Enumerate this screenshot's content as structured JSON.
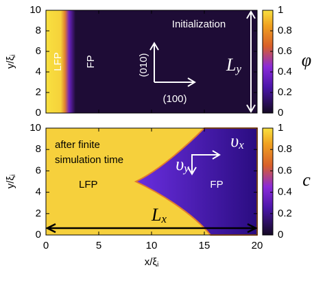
{
  "chart_data": [
    {
      "type": "heatmap",
      "ylabel": "y/ξi",
      "colorbar_label": "φ",
      "xlim": [
        0,
        20
      ],
      "xticks": [
        0,
        5,
        10,
        15,
        20
      ],
      "ylim": [
        0,
        10
      ],
      "yticks": [
        0,
        2,
        4,
        6,
        8,
        10
      ],
      "clim": [
        0,
        1
      ],
      "cticks": [
        0,
        0.2,
        0.4,
        0.6,
        0.8,
        1
      ],
      "annotations": [
        "Initialization",
        "LFP",
        "FP",
        "(010)",
        "(100)",
        "Ly"
      ]
    },
    {
      "type": "heatmap",
      "xlabel": "x/ξi",
      "ylabel": "y/ξi",
      "colorbar_label": "c",
      "xlim": [
        0,
        20
      ],
      "xticks": [
        0,
        5,
        10,
        15,
        20
      ],
      "ylim": [
        0,
        10
      ],
      "yticks": [
        0,
        2,
        4,
        6,
        8,
        10
      ],
      "clim": [
        0,
        1
      ],
      "cticks": [
        0,
        0.2,
        0.4,
        0.6,
        0.8,
        1
      ],
      "annotations": [
        "after finite",
        "simulation time",
        "LFP",
        "FP",
        "υx",
        "υy",
        "Lx"
      ]
    }
  ]
}
